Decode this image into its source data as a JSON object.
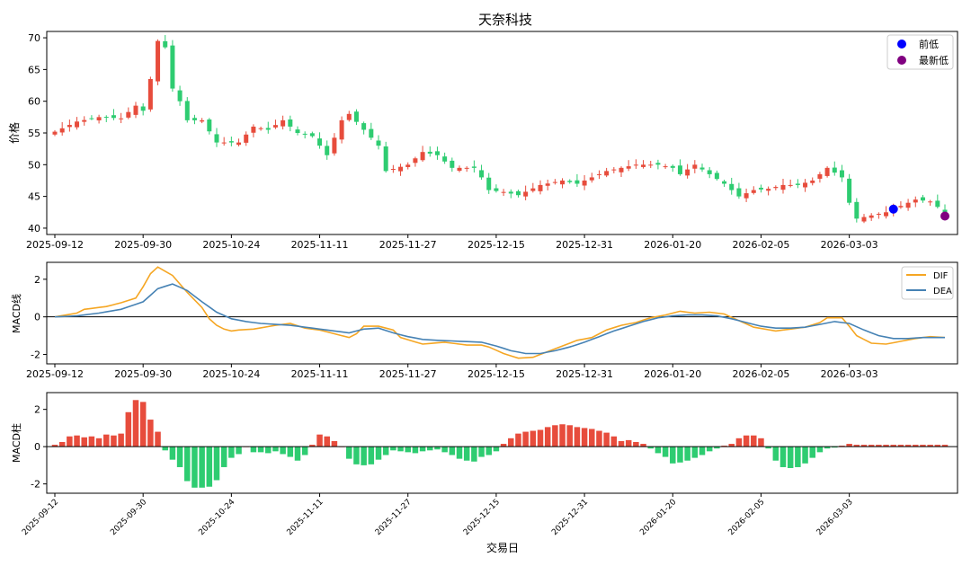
{
  "chart_data": {
    "type": "candlestick-macd",
    "title": "天奈科技",
    "xlabel": "交易日",
    "dates": [
      "2025-09-12",
      "2025-09-30",
      "2025-10-24",
      "2025-11-11",
      "2025-11-27",
      "2025-12-15",
      "2025-12-31",
      "2026-01-20",
      "2026-02-05",
      "2026-03-03"
    ],
    "n_days": 122,
    "date_tick_index": [
      0,
      12,
      24,
      36,
      48,
      60,
      72,
      84,
      96,
      108
    ],
    "colors": {
      "up": "#e74c3c",
      "down": "#2ecc71",
      "dif": "#f5a623",
      "dea": "#4682b4",
      "prev_low": "#0000ff",
      "latest_low": "#800080",
      "zero": "#000000"
    },
    "price_panel": {
      "ylabel": "价格",
      "ylim": [
        39,
        71
      ],
      "yticks": [
        40,
        45,
        50,
        55,
        60,
        65,
        70
      ],
      "close_anchors": [
        [
          0,
          55.2
        ],
        [
          3,
          56.8
        ],
        [
          6,
          57.5
        ],
        [
          9,
          57.3
        ],
        [
          11,
          59.3
        ],
        [
          12,
          58.5
        ],
        [
          13,
          63.5
        ],
        [
          14,
          69.5
        ],
        [
          15,
          68.5
        ],
        [
          16,
          62
        ],
        [
          17,
          60
        ],
        [
          18,
          57
        ],
        [
          20,
          57
        ],
        [
          22,
          53.5
        ],
        [
          25,
          53.5
        ],
        [
          27,
          56
        ],
        [
          29,
          55.5
        ],
        [
          31,
          57
        ],
        [
          33,
          55
        ],
        [
          35,
          54.5
        ],
        [
          37,
          51.5
        ],
        [
          39,
          57
        ],
        [
          40,
          58
        ],
        [
          42,
          55.5
        ],
        [
          44,
          53
        ],
        [
          45,
          49
        ],
        [
          48,
          50
        ],
        [
          50,
          52
        ],
        [
          52,
          51.5
        ],
        [
          54,
          49.5
        ],
        [
          57,
          49.5
        ],
        [
          58,
          48
        ],
        [
          59,
          46
        ],
        [
          61,
          45.7
        ],
        [
          63,
          45.2
        ],
        [
          66,
          46.8
        ],
        [
          69,
          47.5
        ],
        [
          71,
          47
        ],
        [
          73,
          48
        ],
        [
          75,
          49
        ],
        [
          77,
          49.5
        ],
        [
          79,
          50
        ],
        [
          82,
          50
        ],
        [
          84,
          49.5
        ],
        [
          85,
          48.5
        ],
        [
          87,
          50
        ],
        [
          89,
          48.5
        ],
        [
          91,
          47
        ],
        [
          93,
          45
        ],
        [
          95,
          46
        ],
        [
          97,
          46.2
        ],
        [
          99,
          46.8
        ],
        [
          101,
          46.8
        ],
        [
          103,
          47.5
        ],
        [
          105,
          49.5
        ],
        [
          107,
          48
        ],
        [
          108,
          44
        ],
        [
          109,
          41.5
        ],
        [
          111,
          42
        ],
        [
          113,
          42.5
        ],
        [
          115,
          43.5
        ],
        [
          117,
          44.5
        ],
        [
          119,
          44.2
        ],
        [
          121,
          42.5
        ]
      ],
      "markers": [
        {
          "label": "前低",
          "index": 114,
          "price": 43.0
        },
        {
          "label": "最新低",
          "index": 121,
          "price": 41.9
        }
      ],
      "legend": [
        "前低",
        "最新低"
      ],
      "legend_loc": "upper-right"
    },
    "macd_panel": {
      "ylabel": "MACD线",
      "yticks": [
        -2,
        0,
        2
      ],
      "ylim": [
        -2.5,
        2.9
      ],
      "series": [
        {
          "name": "DIF",
          "anchors": [
            [
              0,
              0
            ],
            [
              3,
              0.2
            ],
            [
              4,
              0.4
            ],
            [
              7,
              0.55
            ],
            [
              9,
              0.75
            ],
            [
              11,
              1.0
            ],
            [
              12,
              1.6
            ],
            [
              13,
              2.3
            ],
            [
              14,
              2.65
            ],
            [
              16,
              2.2
            ],
            [
              18,
              1.3
            ],
            [
              20,
              0.5
            ],
            [
              21,
              -0.1
            ],
            [
              22,
              -0.45
            ],
            [
              23,
              -0.65
            ],
            [
              24,
              -0.75
            ],
            [
              25,
              -0.7
            ],
            [
              27,
              -0.65
            ],
            [
              30,
              -0.45
            ],
            [
              32,
              -0.35
            ],
            [
              34,
              -0.6
            ],
            [
              36,
              -0.7
            ],
            [
              38,
              -0.9
            ],
            [
              40,
              -1.1
            ],
            [
              41,
              -0.9
            ],
            [
              42,
              -0.5
            ],
            [
              44,
              -0.5
            ],
            [
              46,
              -0.7
            ],
            [
              47,
              -1.1
            ],
            [
              50,
              -1.45
            ],
            [
              53,
              -1.35
            ],
            [
              56,
              -1.5
            ],
            [
              58,
              -1.5
            ],
            [
              59,
              -1.6
            ],
            [
              61,
              -1.95
            ],
            [
              63,
              -2.2
            ],
            [
              65,
              -2.15
            ],
            [
              67,
              -1.85
            ],
            [
              69,
              -1.55
            ],
            [
              71,
              -1.25
            ],
            [
              73,
              -1.1
            ],
            [
              75,
              -0.7
            ],
            [
              77,
              -0.45
            ],
            [
              79,
              -0.3
            ],
            [
              81,
              -0.05
            ],
            [
              83,
              0.1
            ],
            [
              85,
              0.3
            ],
            [
              87,
              0.2
            ],
            [
              89,
              0.25
            ],
            [
              91,
              0.15
            ],
            [
              93,
              -0.2
            ],
            [
              95,
              -0.55
            ],
            [
              98,
              -0.75
            ],
            [
              100,
              -0.65
            ],
            [
              102,
              -0.55
            ],
            [
              104,
              -0.3
            ],
            [
              105,
              -0.05
            ],
            [
              107,
              -0.05
            ],
            [
              108,
              -0.5
            ],
            [
              109,
              -1.0
            ],
            [
              111,
              -1.4
            ],
            [
              113,
              -1.45
            ],
            [
              115,
              -1.3
            ],
            [
              117,
              -1.15
            ],
            [
              119,
              -1.05
            ],
            [
              121,
              -1.1
            ]
          ]
        },
        {
          "name": "DEA",
          "anchors": [
            [
              0,
              0
            ],
            [
              3,
              0.05
            ],
            [
              6,
              0.2
            ],
            [
              9,
              0.4
            ],
            [
              12,
              0.8
            ],
            [
              14,
              1.5
            ],
            [
              16,
              1.75
            ],
            [
              18,
              1.4
            ],
            [
              20,
              0.8
            ],
            [
              22,
              0.25
            ],
            [
              24,
              -0.1
            ],
            [
              26,
              -0.25
            ],
            [
              28,
              -0.35
            ],
            [
              30,
              -0.4
            ],
            [
              32,
              -0.45
            ],
            [
              34,
              -0.55
            ],
            [
              36,
              -0.65
            ],
            [
              38,
              -0.75
            ],
            [
              40,
              -0.85
            ],
            [
              42,
              -0.65
            ],
            [
              44,
              -0.6
            ],
            [
              46,
              -0.85
            ],
            [
              48,
              -1.05
            ],
            [
              50,
              -1.2
            ],
            [
              52,
              -1.25
            ],
            [
              55,
              -1.3
            ],
            [
              58,
              -1.35
            ],
            [
              60,
              -1.55
            ],
            [
              62,
              -1.8
            ],
            [
              64,
              -1.95
            ],
            [
              66,
              -1.95
            ],
            [
              68,
              -1.8
            ],
            [
              70,
              -1.6
            ],
            [
              72,
              -1.35
            ],
            [
              74,
              -1.05
            ],
            [
              76,
              -0.75
            ],
            [
              78,
              -0.5
            ],
            [
              80,
              -0.25
            ],
            [
              82,
              -0.05
            ],
            [
              84,
              0.05
            ],
            [
              86,
              0.1
            ],
            [
              88,
              0.1
            ],
            [
              90,
              0.05
            ],
            [
              92,
              -0.1
            ],
            [
              94,
              -0.3
            ],
            [
              96,
              -0.5
            ],
            [
              98,
              -0.6
            ],
            [
              100,
              -0.6
            ],
            [
              102,
              -0.55
            ],
            [
              104,
              -0.4
            ],
            [
              106,
              -0.25
            ],
            [
              108,
              -0.35
            ],
            [
              110,
              -0.7
            ],
            [
              112,
              -1.0
            ],
            [
              114,
              -1.15
            ],
            [
              116,
              -1.15
            ],
            [
              118,
              -1.1
            ],
            [
              121,
              -1.1
            ]
          ]
        }
      ],
      "legend_loc": "upper-right"
    },
    "hist_panel": {
      "ylabel": "MACD柱",
      "yticks": [
        -2,
        0,
        2
      ],
      "ylim": [
        -2.5,
        2.9
      ],
      "anchors": [
        [
          0,
          0.1
        ],
        [
          1,
          0.25
        ],
        [
          2,
          0.55
        ],
        [
          3,
          0.6
        ],
        [
          4,
          0.5
        ],
        [
          5,
          0.55
        ],
        [
          6,
          0.45
        ],
        [
          7,
          0.65
        ],
        [
          8,
          0.6
        ],
        [
          9,
          0.7
        ],
        [
          10,
          1.85
        ],
        [
          11,
          2.5
        ],
        [
          12,
          2.4
        ],
        [
          13,
          1.45
        ],
        [
          14,
          0.8
        ],
        [
          15,
          -0.2
        ],
        [
          16,
          -0.7
        ],
        [
          17,
          -1.1
        ],
        [
          18,
          -1.85
        ],
        [
          19,
          -2.2
        ],
        [
          20,
          -2.2
        ],
        [
          21,
          -2.15
        ],
        [
          22,
          -1.8
        ],
        [
          23,
          -1.1
        ],
        [
          24,
          -0.6
        ],
        [
          25,
          -0.4
        ],
        [
          26,
          0
        ],
        [
          27,
          -0.3
        ],
        [
          28,
          -0.3
        ],
        [
          29,
          -0.35
        ],
        [
          30,
          -0.25
        ],
        [
          31,
          -0.4
        ],
        [
          32,
          -0.55
        ],
        [
          33,
          -0.75
        ],
        [
          34,
          -0.45
        ],
        [
          35,
          0.1
        ],
        [
          36,
          0.65
        ],
        [
          37,
          0.55
        ],
        [
          38,
          0.3
        ],
        [
          39,
          0
        ],
        [
          40,
          -0.65
        ],
        [
          41,
          -0.95
        ],
        [
          42,
          -1.0
        ],
        [
          43,
          -0.95
        ],
        [
          44,
          -0.7
        ],
        [
          45,
          -0.45
        ],
        [
          46,
          -0.2
        ],
        [
          47,
          -0.25
        ],
        [
          48,
          -0.3
        ],
        [
          49,
          -0.35
        ],
        [
          50,
          -0.25
        ],
        [
          51,
          -0.2
        ],
        [
          52,
          -0.15
        ],
        [
          53,
          -0.3
        ],
        [
          54,
          -0.45
        ],
        [
          55,
          -0.65
        ],
        [
          56,
          -0.75
        ],
        [
          57,
          -0.8
        ],
        [
          58,
          -0.55
        ],
        [
          59,
          -0.45
        ],
        [
          60,
          -0.25
        ],
        [
          61,
          0.15
        ],
        [
          62,
          0.45
        ],
        [
          63,
          0.7
        ],
        [
          64,
          0.8
        ],
        [
          65,
          0.85
        ],
        [
          66,
          0.9
        ],
        [
          67,
          1.05
        ],
        [
          68,
          1.15
        ],
        [
          69,
          1.2
        ],
        [
          70,
          1.15
        ],
        [
          71,
          1.05
        ],
        [
          72,
          1.0
        ],
        [
          73,
          0.95
        ],
        [
          74,
          0.85
        ],
        [
          75,
          0.75
        ],
        [
          76,
          0.55
        ],
        [
          77,
          0.3
        ],
        [
          78,
          0.35
        ],
        [
          79,
          0.25
        ],
        [
          80,
          0.15
        ],
        [
          81,
          -0.1
        ],
        [
          82,
          -0.35
        ],
        [
          83,
          -0.55
        ],
        [
          84,
          -0.9
        ],
        [
          85,
          -0.85
        ],
        [
          86,
          -0.75
        ],
        [
          87,
          -0.6
        ],
        [
          88,
          -0.45
        ],
        [
          89,
          -0.25
        ],
        [
          90,
          -0.1
        ],
        [
          91,
          0.05
        ],
        [
          92,
          0.15
        ],
        [
          93,
          0.45
        ],
        [
          94,
          0.6
        ],
        [
          95,
          0.6
        ],
        [
          96,
          0.45
        ],
        [
          97,
          -0.1
        ],
        [
          98,
          -0.75
        ],
        [
          99,
          -1.1
        ],
        [
          100,
          -1.15
        ],
        [
          101,
          -1.1
        ],
        [
          102,
          -0.9
        ],
        [
          103,
          -0.6
        ],
        [
          104,
          -0.3
        ],
        [
          105,
          -0.1
        ],
        [
          106,
          -0.05
        ],
        [
          107,
          0.05
        ],
        [
          108,
          0.15
        ],
        [
          109,
          0.1
        ],
        [
          121,
          0.1
        ]
      ]
    }
  }
}
